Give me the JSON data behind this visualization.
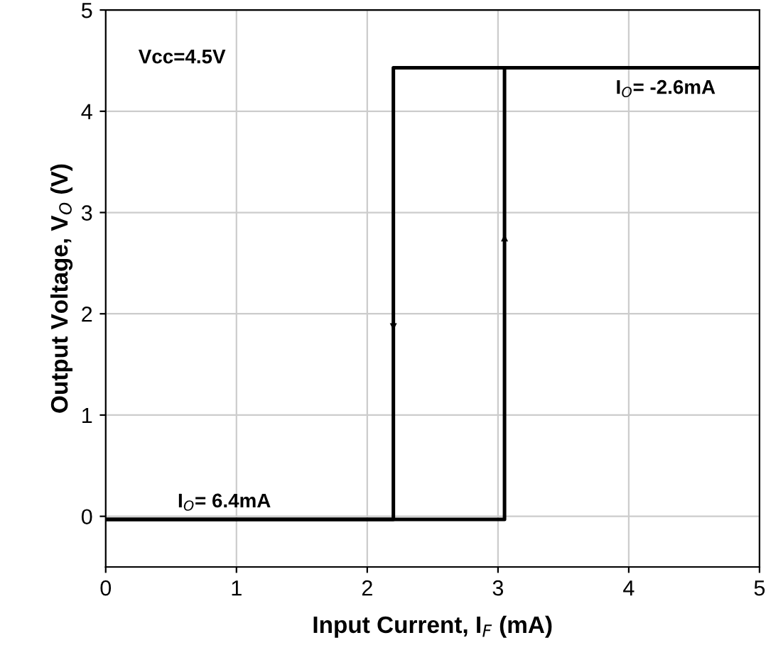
{
  "chart_data": {
    "type": "line",
    "xlabel": "Input Current, I$_{F}$ (mA)",
    "ylabel": "Output Voltage, V$_{O}$ (V)",
    "xlim": [
      0,
      5
    ],
    "xticks": [
      0,
      1,
      2,
      3,
      4,
      5
    ],
    "ylim": [
      -0.5,
      5
    ],
    "yticks": [
      0,
      1,
      2,
      3,
      4,
      5
    ],
    "grid": true,
    "line_style": "solid",
    "marker": "none",
    "series": [
      {
        "color": "#000000",
        "x": [
          0,
          3.05,
          3.05,
          5
        ],
        "values": [
          -0.03,
          -0.03,
          4.43,
          4.43
        ]
      },
      {
        "color": "#000000",
        "x": [
          5,
          2.2,
          2.2,
          0
        ],
        "values": [
          4.43,
          4.43,
          -0.03,
          -0.03
        ]
      }
    ],
    "annotations": [
      "Vcc=4.5V",
      {
        "text": "I$_{O}$= -2.6mA",
        "x": 3.9,
        "y": 4.43
      },
      {
        "text": "I$_{O}$= 6.4mA",
        "x": 0.55,
        "y": -0.03
      }
    ]
  }
}
